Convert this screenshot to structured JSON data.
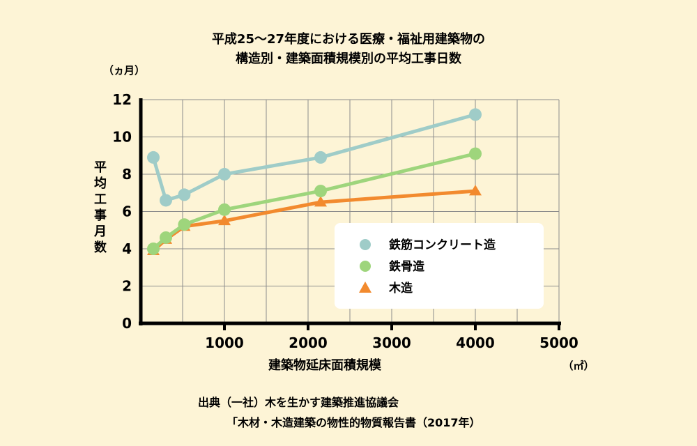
{
  "chart_data": {
    "type": "line",
    "title": [
      "平成25～27年度における医療・福祉用建築物の",
      "構造別・建築面積規模別の平均工事日数"
    ],
    "ylabel": "平均工事月数",
    "yunit": "（ヵ月）",
    "xlabel": "建築物延床面積規模",
    "xunit": "（㎡）",
    "xlim": [
      0,
      5000
    ],
    "ylim": [
      0,
      12
    ],
    "xticks": [
      1000,
      2000,
      3000,
      4000,
      5000
    ],
    "yticks": [
      0,
      2,
      4,
      6,
      8,
      10,
      12
    ],
    "grid": true,
    "legend_position": "right",
    "series": [
      {
        "name": "鉄筋コンクリート造",
        "marker": "circle",
        "color": "#9fccc8",
        "points": [
          [
            150,
            8.9
          ],
          [
            300,
            6.6
          ],
          [
            520,
            6.9
          ],
          [
            1000,
            8.0
          ],
          [
            2150,
            8.9
          ],
          [
            4000,
            11.2
          ]
        ]
      },
      {
        "name": "鉄骨造",
        "marker": "circle",
        "color": "#9ed57c",
        "points": [
          [
            150,
            4.0
          ],
          [
            300,
            4.6
          ],
          [
            520,
            5.3
          ],
          [
            1000,
            6.1
          ],
          [
            2150,
            7.1
          ],
          [
            4000,
            9.1
          ]
        ]
      },
      {
        "name": "木造",
        "marker": "triangle",
        "color": "#f28a2e",
        "points": [
          [
            150,
            3.9
          ],
          [
            300,
            4.5
          ],
          [
            520,
            5.2
          ],
          [
            1000,
            5.5
          ],
          [
            2150,
            6.5
          ],
          [
            4000,
            7.1
          ]
        ]
      }
    ]
  },
  "source": {
    "line1": "出典（一社）木を生かす建築推進協議会",
    "line2": "「木材・木造建築の物性的物質報告書（2017年）"
  }
}
